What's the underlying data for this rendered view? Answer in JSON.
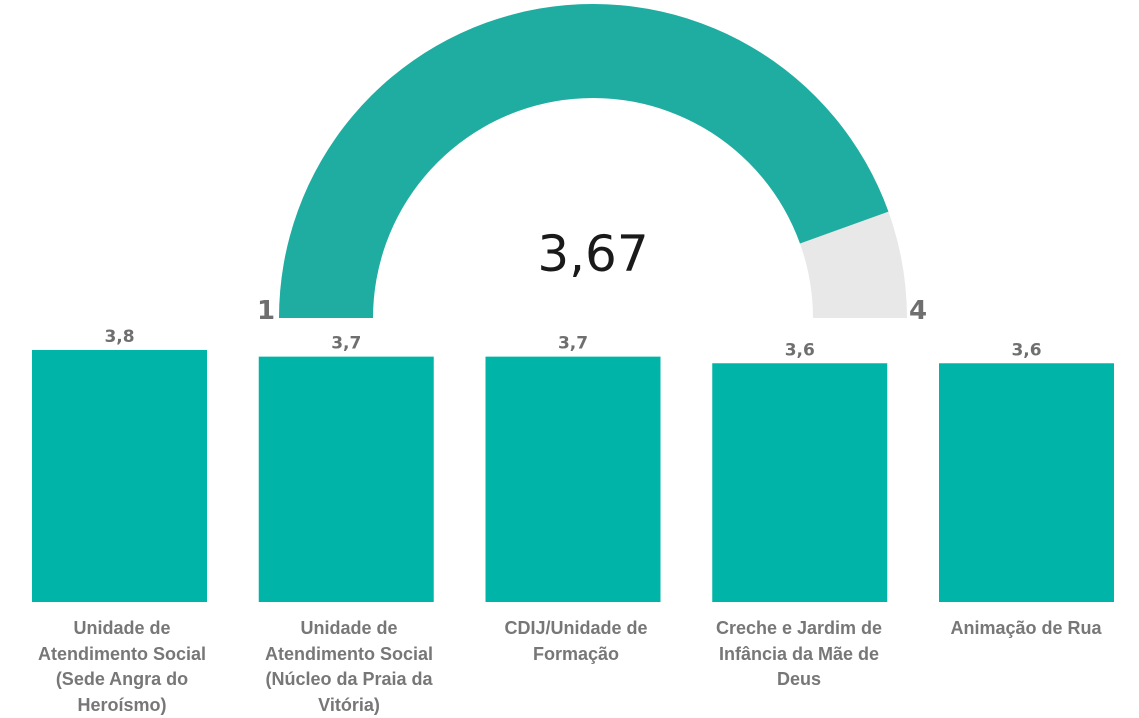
{
  "chart_data": [
    {
      "type": "gauge",
      "min": 1,
      "max": 4,
      "value": 3.67,
      "value_label": "3,67",
      "min_label": "1",
      "max_label": "4",
      "fill_color": "#1eada0",
      "track_color": "#e8e8e8"
    },
    {
      "type": "bar",
      "categories": [
        "Unidade de Atendimento Social (Sede Angra do Heroísmo)",
        "Unidade de Atendimento Social (Núcleo da Praia da Vitória)",
        "CDIJ/Unidade de Formação",
        "Creche e Jardim de Infância da Mãe de Deus",
        "Animação de Rua"
      ],
      "values": [
        3.8,
        3.7,
        3.7,
        3.6,
        3.6
      ],
      "value_labels": [
        "3,8",
        "3,7",
        "3,7",
        "3,6",
        "3,6"
      ],
      "ylim": [
        0,
        3.8
      ],
      "bar_color": "#00b5a7",
      "grid": false
    }
  ]
}
